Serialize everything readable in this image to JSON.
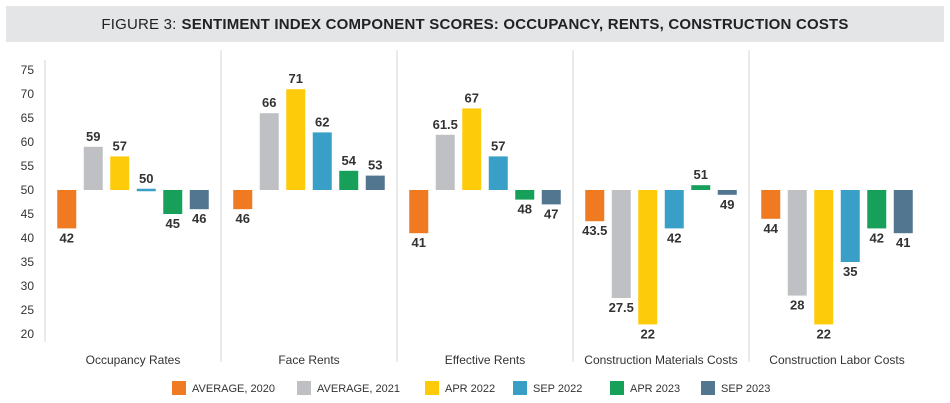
{
  "figure_label": "FIGURE 3:",
  "chart_data": {
    "type": "bar",
    "title": "SENTIMENT INDEX COMPONENT SCORES: OCCUPANCY, RENTS, CONSTRUCTION COSTS",
    "baseline": 50,
    "ylim": [
      20,
      75
    ],
    "yticks": [
      20,
      25,
      30,
      35,
      40,
      45,
      50,
      55,
      60,
      65,
      70,
      75
    ],
    "grid": false,
    "legend_position": "bottom",
    "categories": [
      "Occupancy Rates",
      "Face Rents",
      "Effective Rents",
      "Construction Materials Costs",
      "Construction Labor Costs"
    ],
    "series": [
      {
        "name": "AVERAGE, 2020",
        "color": "#f07a22",
        "values": [
          42,
          46,
          41,
          43.5,
          44
        ],
        "labels": [
          "42",
          "46",
          "41",
          "43.5",
          "44"
        ]
      },
      {
        "name": "AVERAGE, 2021",
        "color": "#bfc0c4",
        "values": [
          59,
          66,
          61.5,
          27.5,
          28
        ],
        "labels": [
          "59",
          "66",
          "61.5",
          "27.5",
          "28"
        ]
      },
      {
        "name": "APR 2022",
        "color": "#fecb0a",
        "values": [
          57,
          71,
          67,
          22,
          22
        ],
        "labels": [
          "57",
          "71",
          "67",
          "22",
          "22"
        ]
      },
      {
        "name": "SEP 2022",
        "color": "#3a9fc7",
        "values": [
          50,
          62,
          57,
          42,
          35
        ],
        "labels": [
          "50",
          "62",
          "57",
          "42",
          "35"
        ]
      },
      {
        "name": "APR 2023",
        "color": "#16a05a",
        "values": [
          45,
          54,
          48,
          51,
          42
        ],
        "labels": [
          "45",
          "54",
          "48",
          "51",
          "42"
        ]
      },
      {
        "name": "SEP 2023",
        "color": "#52768f",
        "values": [
          46,
          53,
          47,
          49,
          41
        ],
        "labels": [
          "46",
          "53",
          "47",
          "49",
          "41"
        ]
      }
    ]
  }
}
